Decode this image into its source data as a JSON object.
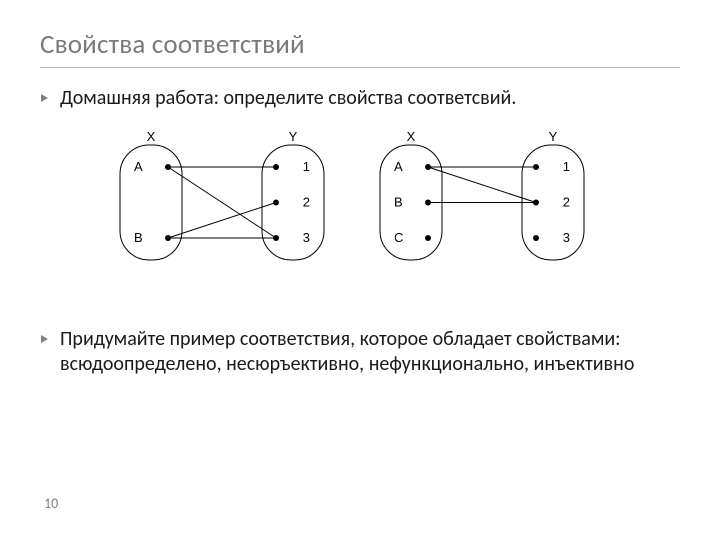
{
  "title": "Свойства соответствий",
  "bullets": {
    "b1": "Домашняя работа: определите свойства соответсвий.",
    "b2": "Придумайте пример соответствия, которое обладает свойствами: всюдоопределено, несюръективно, нефункционально, инъективно"
  },
  "page_number": "10",
  "diagram_left": {
    "type": "mapping-diagram",
    "source_label": "X",
    "target_label": "Y",
    "source_nodes": [
      "A",
      "B"
    ],
    "target_nodes": [
      "1",
      "2",
      "3"
    ],
    "edges": [
      [
        "A",
        "1"
      ],
      [
        "A",
        "3"
      ],
      [
        "B",
        "2"
      ],
      [
        "B",
        "3"
      ]
    ],
    "node_radius": 3,
    "line_width": 1,
    "colors": {
      "text": "#000000",
      "border": "#000000",
      "dot": "#000000",
      "line": "#000000",
      "bg": "#ffffff"
    },
    "label_fontsize": 13,
    "set_fontsize": 13,
    "oval_w": 62,
    "oval_h": 115,
    "gap": 80
  },
  "diagram_right": {
    "type": "mapping-diagram",
    "source_label": "X",
    "target_label": "Y",
    "source_nodes": [
      "A",
      "B",
      "C"
    ],
    "target_nodes": [
      "1",
      "2",
      "3"
    ],
    "edges": [
      [
        "A",
        "1"
      ],
      [
        "A",
        "2"
      ],
      [
        "B",
        "2"
      ]
    ],
    "node_radius": 3,
    "line_width": 1,
    "colors": {
      "text": "#000000",
      "border": "#000000",
      "dot": "#000000",
      "line": "#000000",
      "bg": "#ffffff"
    },
    "label_fontsize": 13,
    "set_fontsize": 13,
    "oval_w": 62,
    "oval_h": 115,
    "gap": 80
  },
  "bullet_marker_color": "#808080"
}
